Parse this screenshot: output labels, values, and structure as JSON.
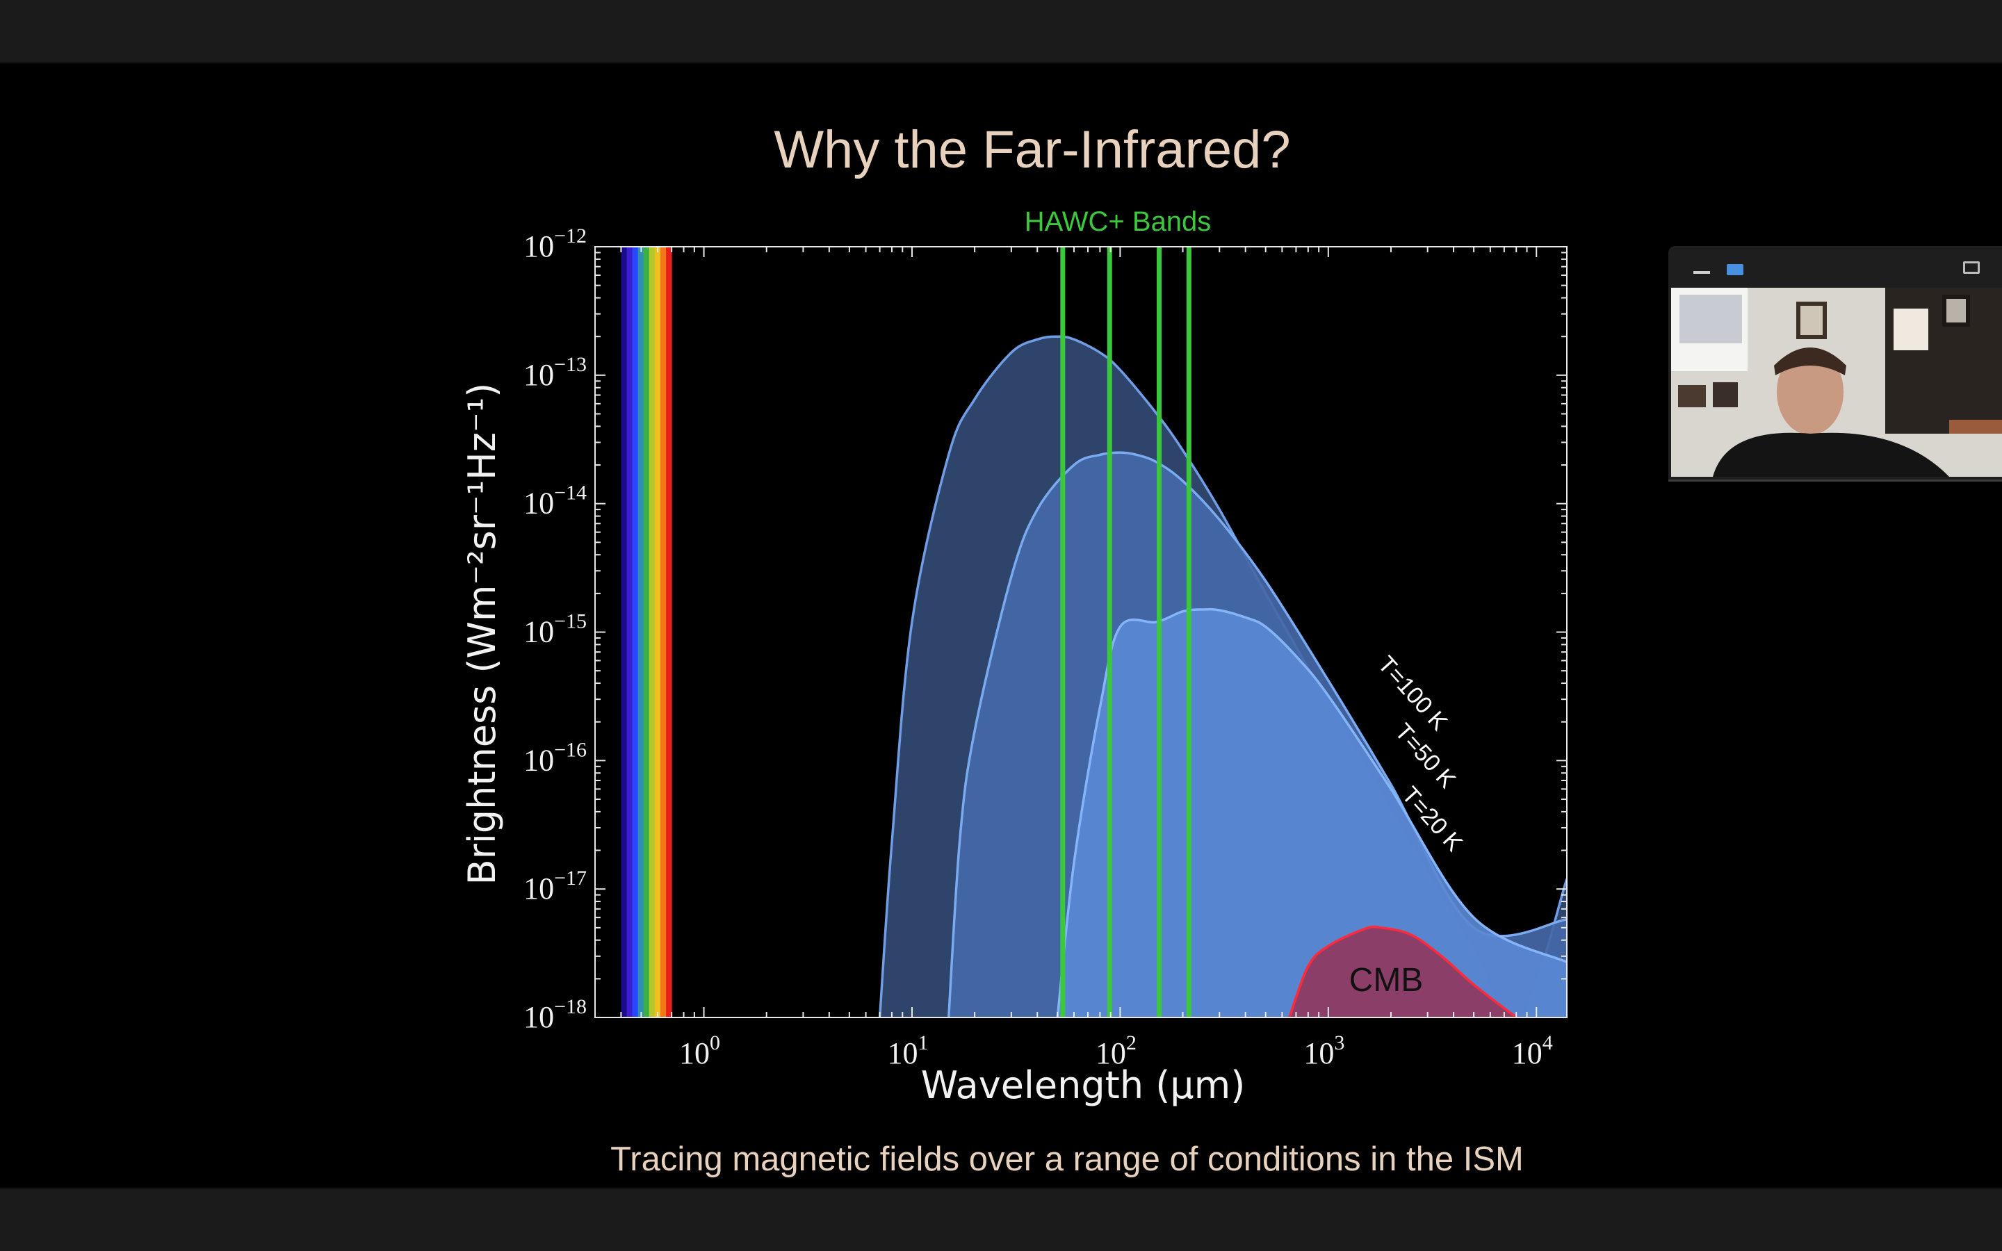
{
  "slide": {
    "title": "Why the Far-Infrared?",
    "subtitle": "Tracing magnetic fields over a range of conditions in the ISM"
  },
  "chart_data": {
    "type": "area",
    "xscale": "log",
    "yscale": "log",
    "xlabel": "Wavelength (μm)",
    "ylabel": "Brightness (Wm⁻²sr⁻¹Hz⁻¹)",
    "xlim": [
      0.3,
      14000
    ],
    "ylim": [
      1e-18,
      1e-12
    ],
    "x_ticks": [
      {
        "value": 1,
        "mantissa": "10",
        "exponent": "0"
      },
      {
        "value": 10,
        "mantissa": "10",
        "exponent": "1"
      },
      {
        "value": 100,
        "mantissa": "10",
        "exponent": "2"
      },
      {
        "value": 1000,
        "mantissa": "10",
        "exponent": "3"
      },
      {
        "value": 10000,
        "mantissa": "10",
        "exponent": "4"
      }
    ],
    "y_ticks": [
      {
        "value": 1e-12,
        "mantissa": "10",
        "exponent": "−12"
      },
      {
        "value": 1e-13,
        "mantissa": "10",
        "exponent": "−13"
      },
      {
        "value": 1e-14,
        "mantissa": "10",
        "exponent": "−14"
      },
      {
        "value": 1e-15,
        "mantissa": "10",
        "exponent": "−15"
      },
      {
        "value": 1e-16,
        "mantissa": "10",
        "exponent": "−16"
      },
      {
        "value": 1e-17,
        "mantissa": "10",
        "exponent": "−17"
      },
      {
        "value": 1e-18,
        "mantissa": "10",
        "exponent": "−18"
      }
    ],
    "band_group_label": "HAWC+ Bands",
    "bands_um": [
      53,
      89,
      154,
      214
    ],
    "band_color": "#3cc83c",
    "visible_spectrum": {
      "range_um": [
        0.4,
        0.7
      ],
      "colors": [
        "#1a0a8c",
        "#3b1fd0",
        "#2848ff",
        "#2f8fb0",
        "#3cb043",
        "#b5c82a",
        "#f0c020",
        "#f07818",
        "#e8201c"
      ]
    },
    "series": [
      {
        "name": "T=100 K",
        "fill": "#324a74",
        "stroke": "#6f9de6",
        "points": [
          [
            7,
            1e-18
          ],
          [
            8,
            2.3e-17
          ],
          [
            10,
            1.2e-15
          ],
          [
            15,
            2.4e-14
          ],
          [
            20,
            6.5e-14
          ],
          [
            30,
            1.5e-13
          ],
          [
            40,
            1.9e-13
          ],
          [
            50,
            2e-13
          ],
          [
            60,
            1.9e-13
          ],
          [
            80,
            1.5e-13
          ],
          [
            100,
            1.1e-13
          ],
          [
            150,
            5e-14
          ],
          [
            200,
            2.6e-14
          ],
          [
            300,
            9e-15
          ],
          [
            500,
            2e-15
          ],
          [
            1000,
            2.8e-16
          ],
          [
            2000,
            4e-17
          ],
          [
            5000,
            3.2e-18
          ],
          [
            8000,
            8e-19
          ],
          [
            14000,
            1.2e-17
          ]
        ]
      },
      {
        "name": "T=50 K",
        "fill": "#4468a8",
        "stroke": "#7aaaf0",
        "points": [
          [
            15,
            1e-18
          ],
          [
            17,
            2.5e-17
          ],
          [
            20,
            1.7e-16
          ],
          [
            30,
            2.7e-15
          ],
          [
            40,
            9e-15
          ],
          [
            60,
            2e-14
          ],
          [
            80,
            2.4e-14
          ],
          [
            100,
            2.5e-14
          ],
          [
            120,
            2.4e-14
          ],
          [
            150,
            2.1e-14
          ],
          [
            200,
            1.5e-14
          ],
          [
            300,
            7.5e-15
          ],
          [
            500,
            2.5e-15
          ],
          [
            1000,
            4.2e-16
          ],
          [
            2000,
            6.5e-17
          ],
          [
            5000,
            5e-18
          ],
          [
            14000,
            5.8e-18
          ]
        ]
      },
      {
        "name": "T=20 K",
        "fill": "#5a88d4",
        "stroke": "#85b4f8",
        "points": [
          [
            50,
            1e-18
          ],
          [
            60,
            1.6e-17
          ],
          [
            80,
            2.6e-16
          ],
          [
            100,
            1.1e-15
          ],
          [
            150,
            1.2e-15
          ],
          [
            200,
            1.45e-15
          ],
          [
            250,
            1.5e-15
          ],
          [
            300,
            1.48e-15
          ],
          [
            400,
            1.3e-15
          ],
          [
            500,
            1.1e-15
          ],
          [
            700,
            6.5e-16
          ],
          [
            1000,
            3.2e-16
          ],
          [
            2000,
            6e-17
          ],
          [
            5000,
            6e-18
          ],
          [
            14000,
            2.7e-18
          ]
        ]
      },
      {
        "name": "CMB",
        "fill": "#8e3a62",
        "stroke": "#ff2a3a",
        "points": [
          [
            650,
            1e-18
          ],
          [
            800,
            2.5e-18
          ],
          [
            1000,
            3.6e-18
          ],
          [
            1500,
            4.9e-18
          ],
          [
            1800,
            5e-18
          ],
          [
            2500,
            4.4e-18
          ],
          [
            3500,
            3e-18
          ],
          [
            5000,
            1.8e-18
          ],
          [
            8000,
            1e-18
          ]
        ]
      }
    ]
  },
  "video": {
    "icons": [
      "minimize-icon",
      "view-icon",
      "expand-icon"
    ],
    "accent_color": "#4a90e2"
  }
}
